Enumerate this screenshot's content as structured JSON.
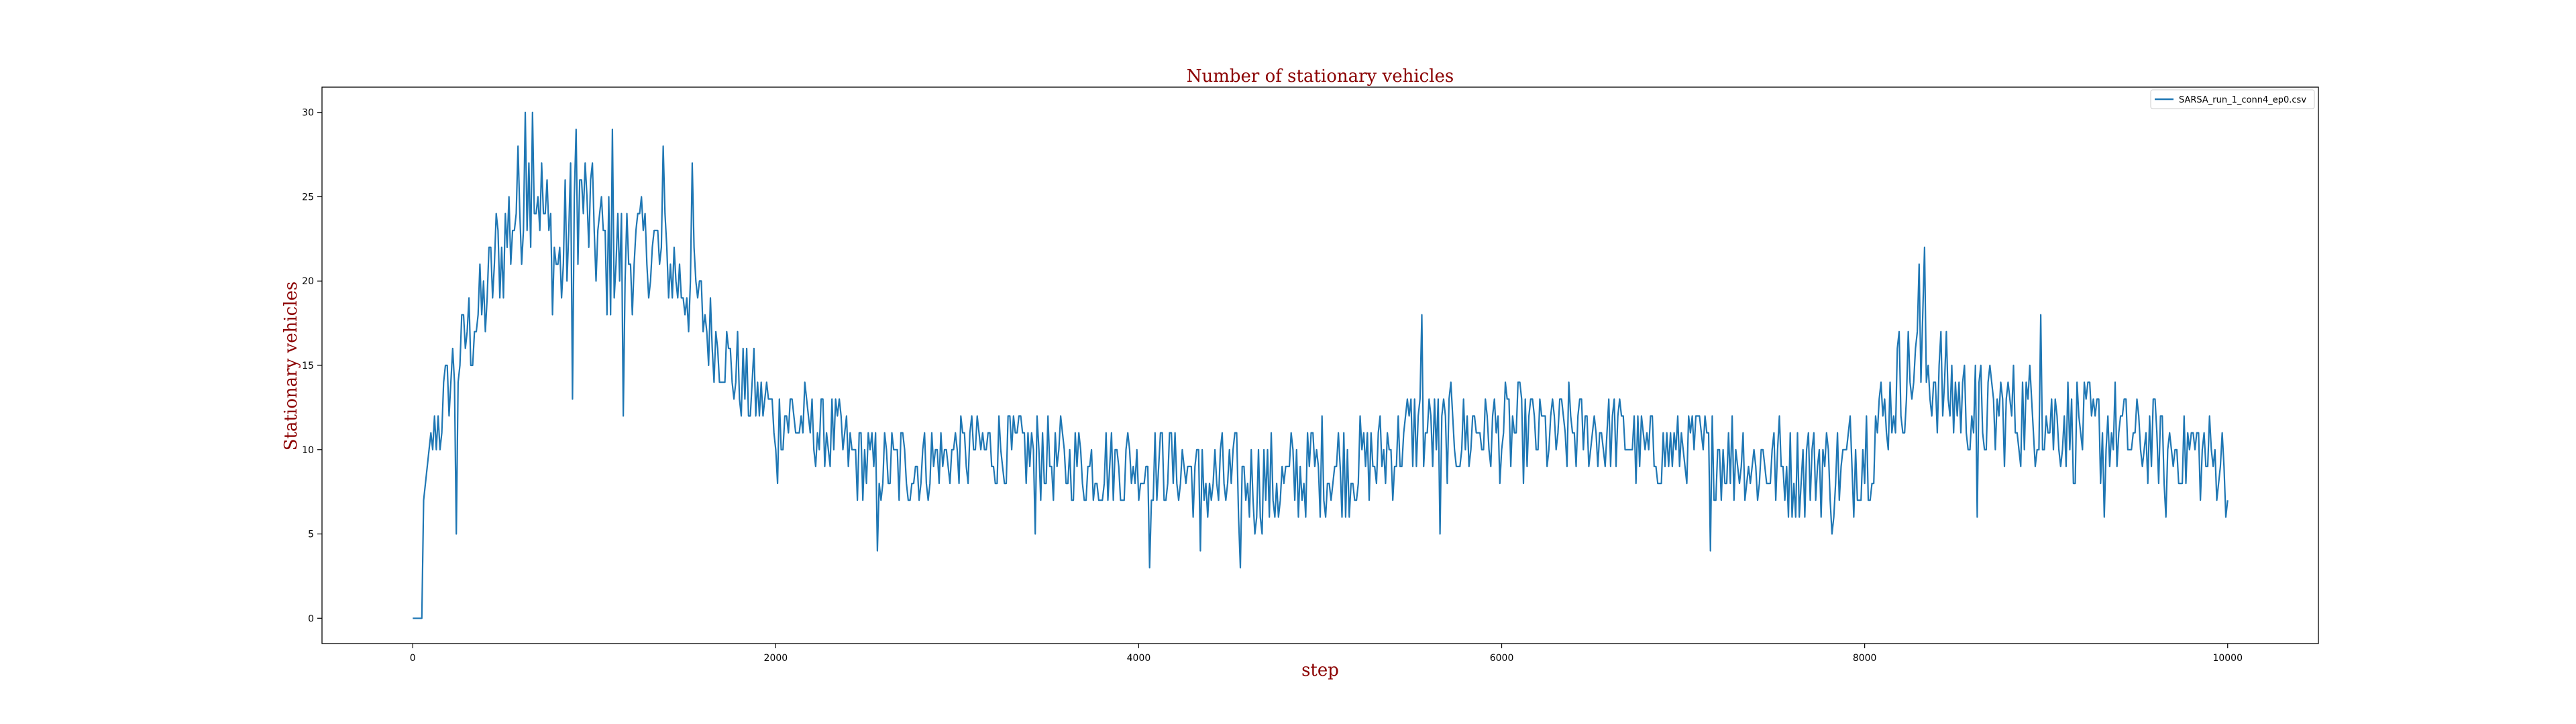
{
  "chart_data": {
    "type": "line",
    "title": "Number of stationary vehicles",
    "xlabel": "step",
    "ylabel": "Stationary vehicles",
    "xlim": [
      -500,
      10500
    ],
    "ylim": [
      -1.5,
      31.5
    ],
    "xticks": [
      0,
      2000,
      4000,
      6000,
      8000,
      10000
    ],
    "yticks": [
      0,
      5,
      10,
      15,
      20,
      25,
      30
    ],
    "grid": false,
    "legend_position": "top-right",
    "series": [
      {
        "name": "SARSA_run_1_conn4_ep0.csv",
        "color": "#1f77b4",
        "x_step": 10,
        "keypoints": [
          [
            0,
            0
          ],
          [
            50,
            0
          ],
          [
            60,
            7
          ],
          [
            80,
            8
          ],
          [
            100,
            10
          ],
          [
            130,
            11
          ],
          [
            160,
            12
          ],
          [
            200,
            14
          ],
          [
            250,
            15
          ],
          [
            300,
            17
          ],
          [
            350,
            18
          ],
          [
            400,
            19
          ],
          [
            450,
            21
          ],
          [
            500,
            22
          ],
          [
            560,
            24
          ],
          [
            600,
            25
          ],
          [
            640,
            26
          ],
          [
            700,
            25
          ],
          [
            760,
            22
          ],
          [
            820,
            21
          ],
          [
            880,
            24
          ],
          [
            920,
            25
          ],
          [
            960,
            24
          ],
          [
            1000,
            23
          ],
          [
            1050,
            22
          ],
          [
            1100,
            21
          ],
          [
            1200,
            22
          ],
          [
            1300,
            22
          ],
          [
            1400,
            21
          ],
          [
            1500,
            20
          ],
          [
            1600,
            18
          ],
          [
            1700,
            16
          ],
          [
            1800,
            14
          ],
          [
            1900,
            13
          ],
          [
            2000,
            12
          ],
          [
            2100,
            12
          ],
          [
            2200,
            11
          ],
          [
            2300,
            11
          ],
          [
            2400,
            10
          ],
          [
            2500,
            9
          ],
          [
            2600,
            9
          ],
          [
            2800,
            9
          ],
          [
            3000,
            10
          ],
          [
            3200,
            10
          ],
          [
            3400,
            10
          ],
          [
            3600,
            9
          ],
          [
            3800,
            9
          ],
          [
            4000,
            9
          ],
          [
            4200,
            9
          ],
          [
            4400,
            8
          ],
          [
            4600,
            8
          ],
          [
            4800,
            8
          ],
          [
            5000,
            9
          ],
          [
            5200,
            9
          ],
          [
            5400,
            10
          ],
          [
            5500,
            11
          ],
          [
            5600,
            11
          ],
          [
            5800,
            11
          ],
          [
            6000,
            11
          ],
          [
            6200,
            11
          ],
          [
            6400,
            11
          ],
          [
            6600,
            11
          ],
          [
            6800,
            10
          ],
          [
            7000,
            10
          ],
          [
            7200,
            10
          ],
          [
            7400,
            9
          ],
          [
            7600,
            9
          ],
          [
            7800,
            9
          ],
          [
            7900,
            9
          ],
          [
            8000,
            10
          ],
          [
            8100,
            12
          ],
          [
            8200,
            14
          ],
          [
            8300,
            15
          ],
          [
            8400,
            14
          ],
          [
            8500,
            13
          ],
          [
            8700,
            12
          ],
          [
            9000,
            12
          ],
          [
            9200,
            11
          ],
          [
            9400,
            11
          ],
          [
            9600,
            10
          ],
          [
            9800,
            10
          ],
          [
            10000,
            9
          ]
        ],
        "noise_amplitude_keypoints": [
          [
            0,
            0
          ],
          [
            60,
            0
          ],
          [
            80,
            2
          ],
          [
            300,
            3
          ],
          [
            600,
            4
          ],
          [
            1000,
            4
          ],
          [
            1500,
            3
          ],
          [
            2000,
            2.5
          ],
          [
            4000,
            2.5
          ],
          [
            4600,
            3
          ],
          [
            7000,
            2.5
          ],
          [
            8300,
            3.5
          ],
          [
            10000,
            2.5
          ]
        ],
        "spikes": [
          [
            620,
            30
          ],
          [
            660,
            30
          ],
          [
            900,
            29
          ],
          [
            1100,
            29
          ],
          [
            1380,
            28
          ],
          [
            1540,
            27
          ],
          [
            1160,
            12
          ],
          [
            2560,
            4
          ],
          [
            3430,
            5
          ],
          [
            4060,
            3
          ],
          [
            4340,
            4
          ],
          [
            4560,
            3
          ],
          [
            5560,
            18
          ],
          [
            5660,
            5
          ],
          [
            7150,
            4
          ],
          [
            7820,
            5
          ],
          [
            8330,
            22
          ],
          [
            8300,
            21
          ],
          [
            8620,
            6
          ],
          [
            8970,
            18
          ],
          [
            9320,
            6
          ],
          [
            9660,
            6
          ],
          [
            9990,
            6
          ],
          [
            240,
            5
          ],
          [
            880,
            13
          ],
          [
            2010,
            8
          ]
        ]
      }
    ]
  }
}
